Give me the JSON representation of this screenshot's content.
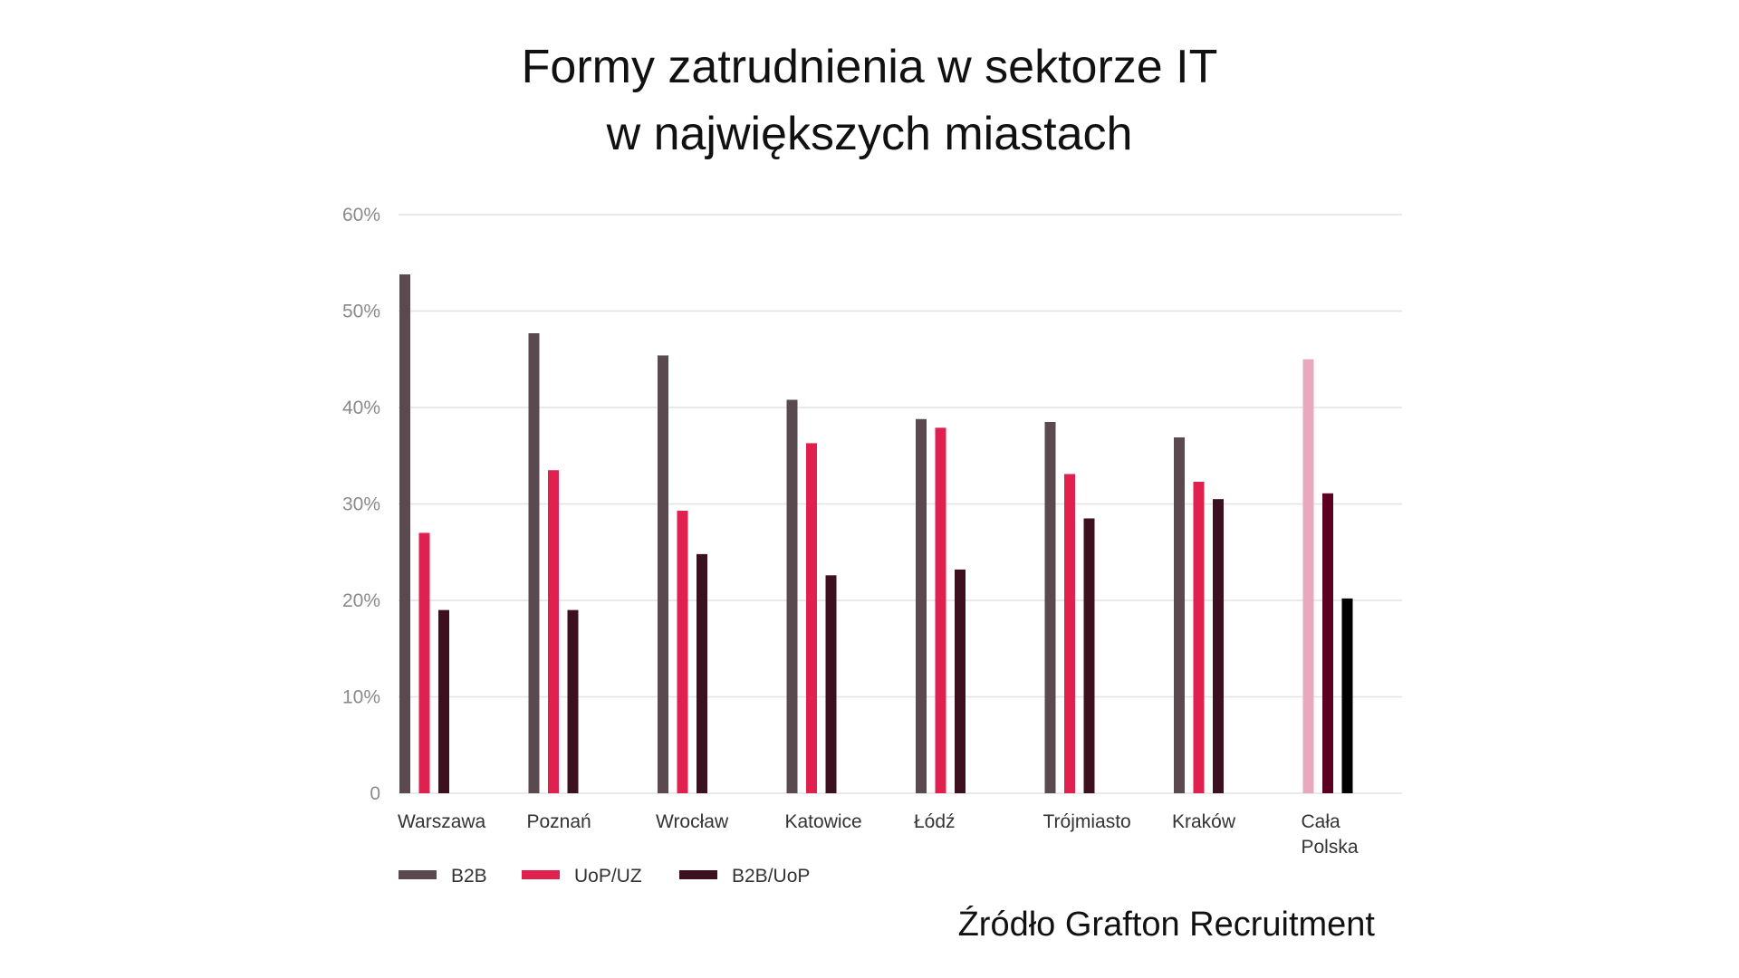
{
  "title_lines": [
    "Formy zatrudnienia w sektorze IT",
    "w największych miastach"
  ],
  "source": "Źródło Grafton Recruitment",
  "chart_data": {
    "type": "bar",
    "title": "Formy zatrudnienia w sektorze IT w największych miastach",
    "categories": [
      "Warszawa",
      "Poznań",
      "Wrocław",
      "Katowice",
      "Łódź",
      "Trójmiasto",
      "Kraków",
      "Cała Polska"
    ],
    "category_label_lines": [
      [
        "Warszawa"
      ],
      [
        "Poznań"
      ],
      [
        "Wrocław"
      ],
      [
        "Katowice"
      ],
      [
        "Łódź"
      ],
      [
        "Trójmiasto"
      ],
      [
        "Kraków"
      ],
      [
        "Cała",
        "Polska"
      ]
    ],
    "series": [
      {
        "name": "B2B",
        "color": "#5a4a50",
        "values": [
          53.8,
          47.7,
          45.4,
          40.8,
          38.8,
          38.5,
          36.9,
          45.0
        ]
      },
      {
        "name": "UoP/UZ",
        "color": "#e0204e",
        "values": [
          27.0,
          33.5,
          29.3,
          36.3,
          37.9,
          33.1,
          32.3,
          31.1
        ]
      },
      {
        "name": "B2B/UoP",
        "color": "#3d1020",
        "values": [
          19.0,
          19.0,
          24.8,
          22.6,
          23.2,
          28.5,
          30.5,
          20.2
        ]
      }
    ],
    "highlight_category": "Cała Polska",
    "highlight_colors": [
      "#e8a8bd",
      "#5c0022",
      "#000000"
    ],
    "y_ticks": [
      "0",
      "10%",
      "20%",
      "30%",
      "40%",
      "50%",
      "60%"
    ],
    "ylim": [
      0,
      60
    ],
    "grid": true,
    "legend_position": "bottom-left"
  }
}
